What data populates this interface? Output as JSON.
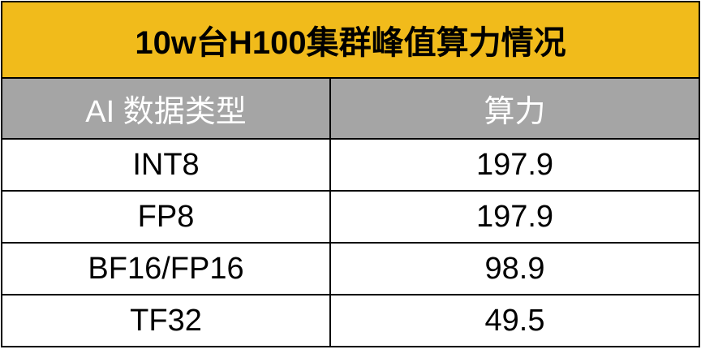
{
  "title": "10w台H100集群峰值算力情况",
  "table": {
    "columns": [
      "AI 数据类型",
      "算力"
    ],
    "rows": [
      [
        "INT8",
        "197.9"
      ],
      [
        "FP8",
        "197.9"
      ],
      [
        "BF16/FP16",
        "98.9"
      ],
      [
        "TF32",
        "49.5"
      ]
    ]
  }
}
